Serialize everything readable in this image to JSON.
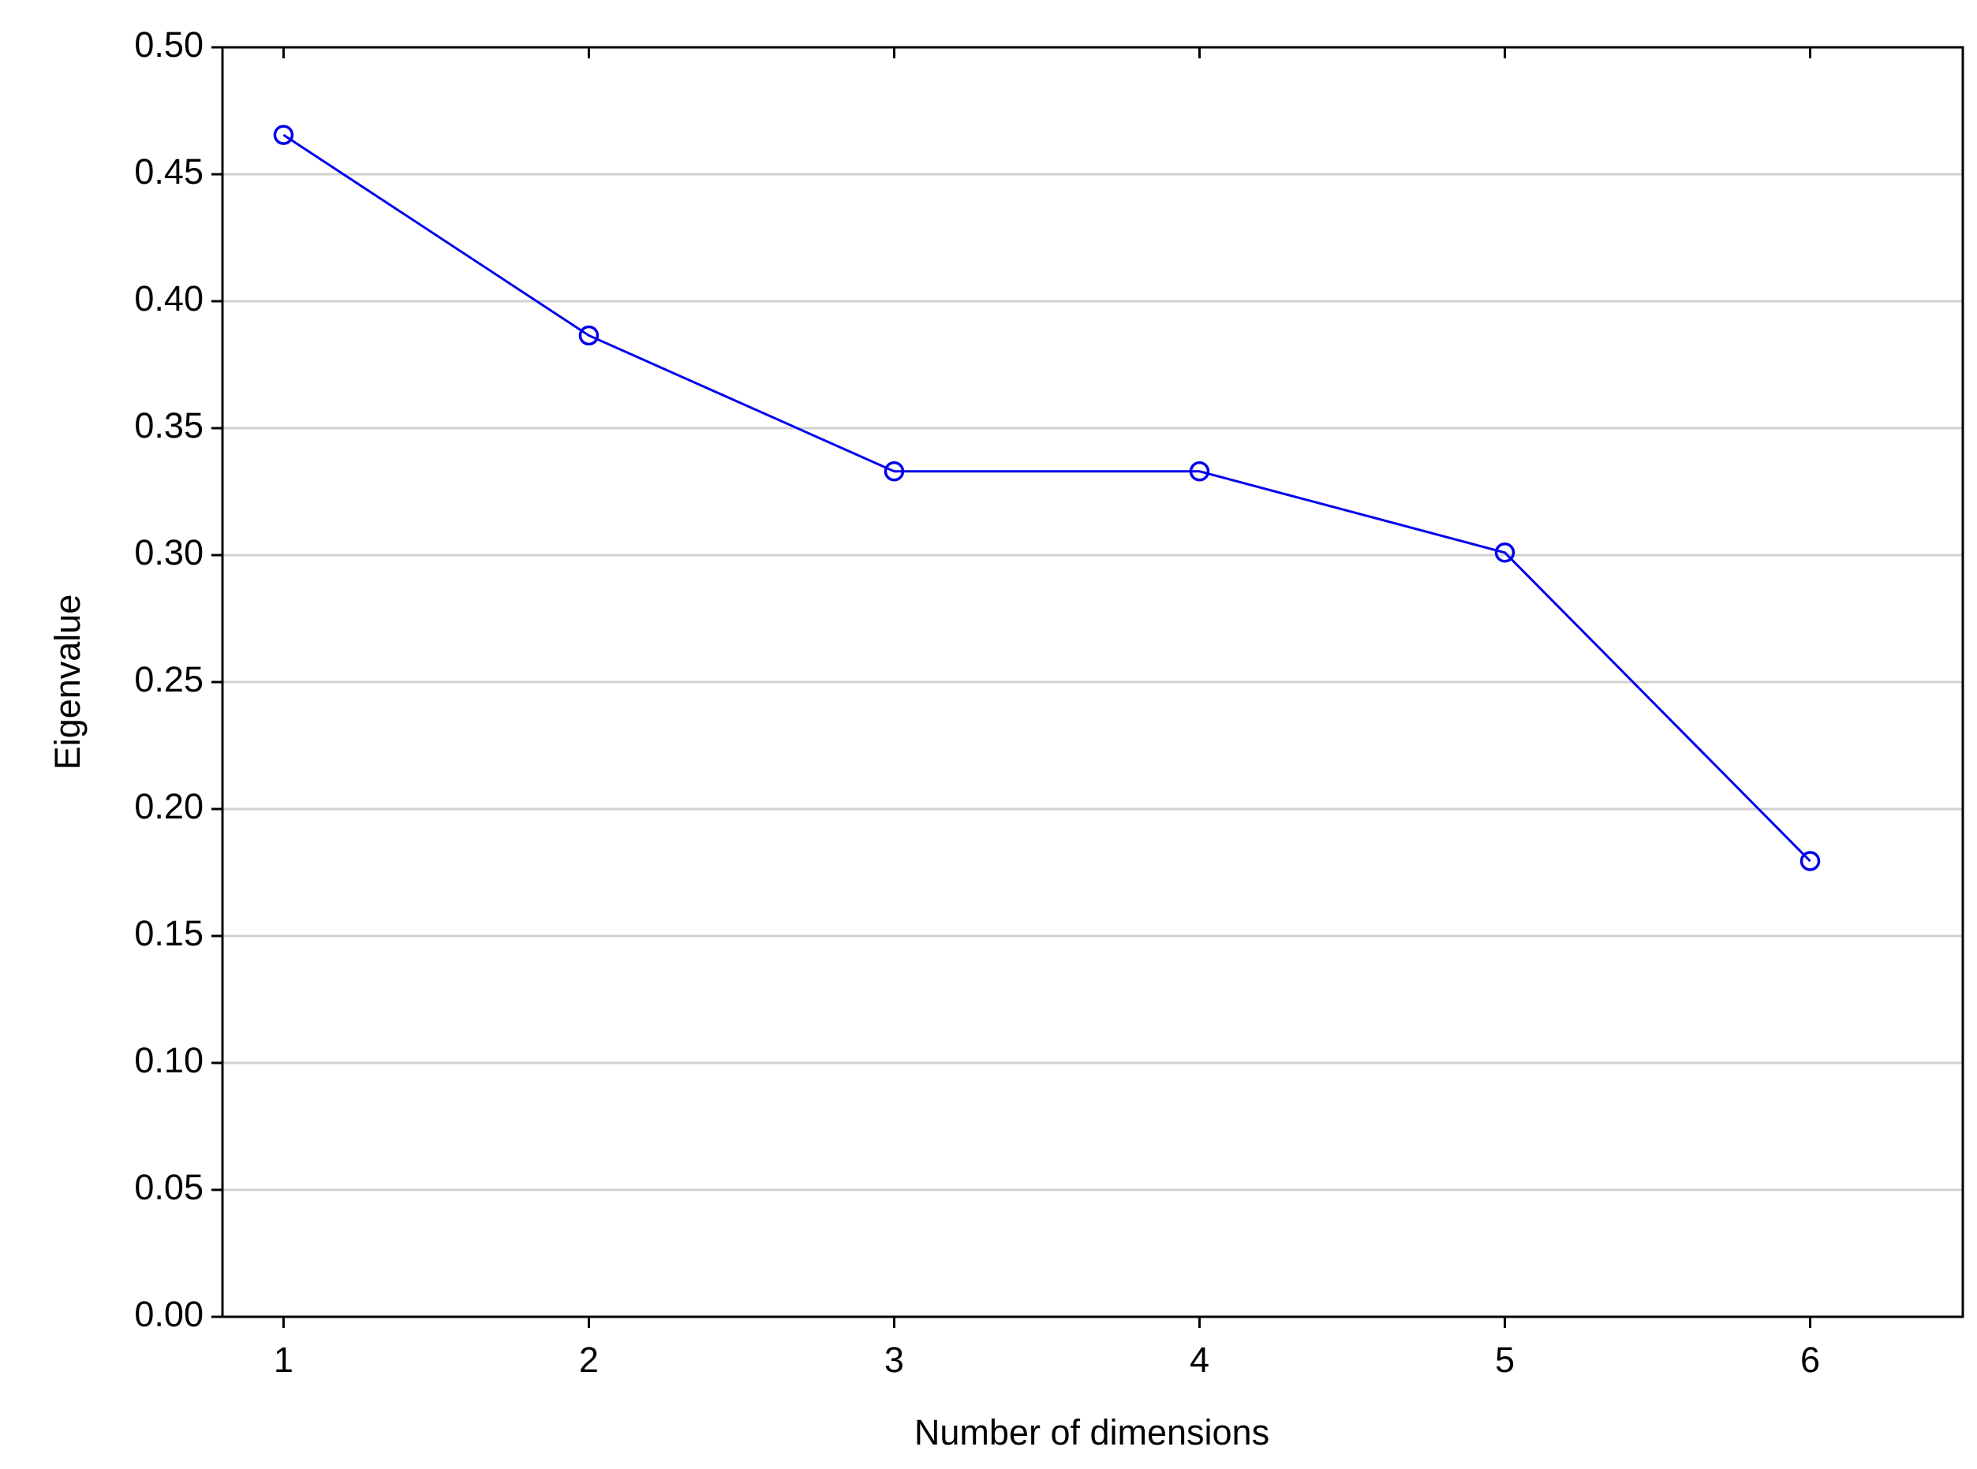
{
  "chart_data": {
    "type": "line",
    "xlabel": "Number of dimensions",
    "ylabel": "Eigenvalue",
    "x": [
      1,
      2,
      3,
      4,
      5,
      6
    ],
    "values": [
      0.4655,
      0.3865,
      0.333,
      0.333,
      0.301,
      0.1795
    ],
    "color": "#0000ee",
    "marker": "circle",
    "xlim": [
      0.8,
      6.5
    ],
    "xticks": [
      1,
      2,
      3,
      4,
      5,
      6
    ],
    "ylim": [
      0,
      0.5
    ],
    "yticks": [
      {
        "value": 0,
        "label": "0.00"
      },
      {
        "value": 0.05,
        "label": "0.05"
      },
      {
        "value": 0.1,
        "label": "0.10"
      },
      {
        "value": 0.15,
        "label": "0.15"
      },
      {
        "value": 0.2,
        "label": "0.20"
      },
      {
        "value": 0.25,
        "label": "0.25"
      },
      {
        "value": 0.3,
        "label": "0.30"
      },
      {
        "value": 0.35,
        "label": "0.35"
      },
      {
        "value": 0.4,
        "label": "0.40"
      },
      {
        "value": 0.45,
        "label": "0.45"
      },
      {
        "value": 0.5,
        "label": "0.50"
      }
    ],
    "grid": true
  }
}
